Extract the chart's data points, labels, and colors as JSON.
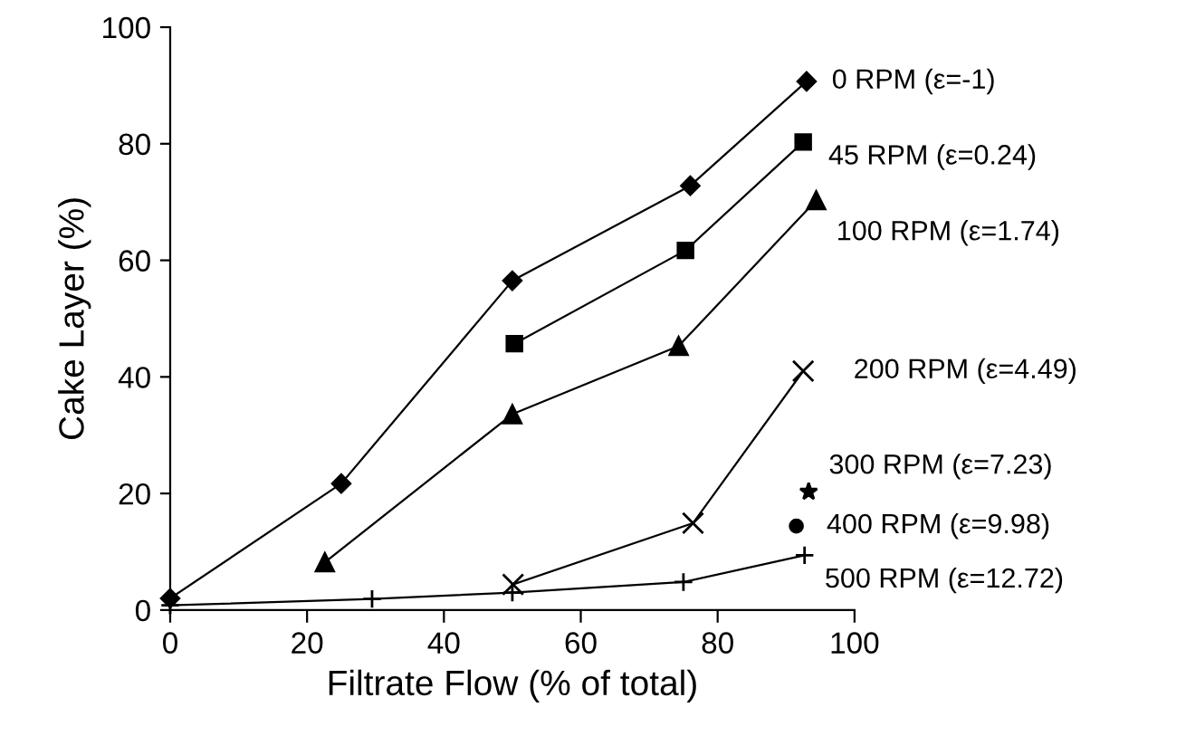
{
  "chart_data": {
    "type": "line",
    "xlabel": "Filtrate Flow (% of total)",
    "ylabel": "Cake Layer (%)",
    "xlim": [
      0,
      100
    ],
    "ylim": [
      0,
      100
    ],
    "xticks": [
      0,
      20,
      40,
      60,
      80,
      100
    ],
    "yticks": [
      0,
      20,
      40,
      60,
      80,
      100
    ],
    "grid": false,
    "legend": false,
    "line_style": "solid",
    "series": [
      {
        "name": "0 RPM (ε=-1)",
        "color": "#000000",
        "marker": "diamond",
        "x": [
          0,
          25,
          50,
          76,
          93
        ],
        "values": [
          2,
          21.7,
          56.5,
          72.8,
          90.7
        ]
      },
      {
        "name": "45 RPM (ε=0.24)",
        "color": "#000000",
        "marker": "square",
        "x": [
          50.3,
          75.3,
          92.5
        ],
        "values": [
          45.7,
          61.7,
          80.3
        ]
      },
      {
        "name": "100 RPM (ε=1.74)",
        "color": "#000000",
        "marker": "triangle",
        "x": [
          22.6,
          50,
          74.3,
          94.4
        ],
        "values": [
          8.2,
          33.6,
          45.3,
          70.3
        ]
      },
      {
        "name": "200 RPM (ε=4.49)",
        "color": "#000000",
        "marker": "cross",
        "x": [
          50.1,
          76.4,
          92.5
        ],
        "values": [
          4.4,
          14.9,
          41
        ]
      },
      {
        "name": "300 RPM (ε=7.23)",
        "color": "#000000",
        "marker": "star",
        "x": [
          93.3
        ],
        "values": [
          20.3
        ]
      },
      {
        "name": "400 RPM (ε=9.98)",
        "color": "#000000",
        "marker": "circle",
        "x": [
          91.5
        ],
        "values": [
          14.4
        ]
      },
      {
        "name": "500 RPM (ε=12.72)",
        "color": "#000000",
        "marker": "plus",
        "x": [
          0,
          29.5,
          50,
          75,
          92.7
        ],
        "values": [
          0.8,
          1.9,
          3,
          4.8,
          9.4
        ]
      }
    ]
  }
}
